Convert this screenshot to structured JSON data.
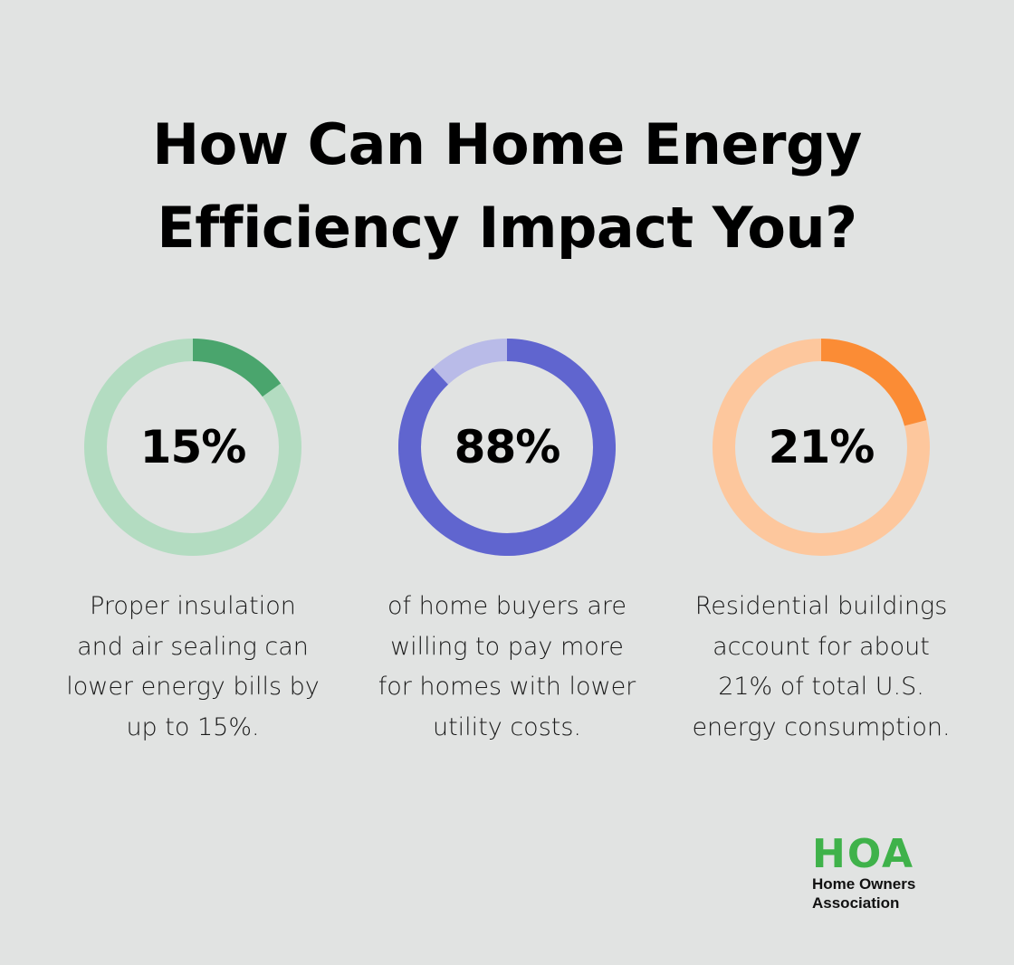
{
  "title_lines": [
    "How Can Home Energy",
    "Efficiency Impact You?"
  ],
  "chart_data": [
    {
      "type": "pie",
      "label": "15%",
      "value": 15,
      "description": "Proper insulation and air sealing can lower energy bills by up to 15%.",
      "desc_lines": [
        "Proper insulation",
        "and air sealing can",
        "lower energy bills by",
        "up to 15%."
      ],
      "colors": {
        "filled": "#4aa56d",
        "track": "#b3dcc1"
      }
    },
    {
      "type": "pie",
      "label": "88%",
      "value": 88,
      "description": "of home buyers are willing to pay more for homes with lower utility costs.",
      "desc_lines": [
        "of home buyers are",
        "willing to pay more",
        "for homes with lower",
        "utility costs."
      ],
      "colors": {
        "filled": "#6065cf",
        "track": "#b9bbe8"
      }
    },
    {
      "type": "pie",
      "label": "21%",
      "value": 21,
      "description": "Residential buildings account for about 21% of total U.S. energy consumption.",
      "desc_lines": [
        "Residential buildings",
        "account for about",
        "21% of total U.S.",
        "energy consumption."
      ],
      "colors": {
        "filled": "#fb8c35",
        "track": "#fdc79d"
      }
    }
  ],
  "logo": {
    "mark": "HOA",
    "line1": "Home Owners",
    "line2": "Association",
    "color": "#3fb24a"
  }
}
